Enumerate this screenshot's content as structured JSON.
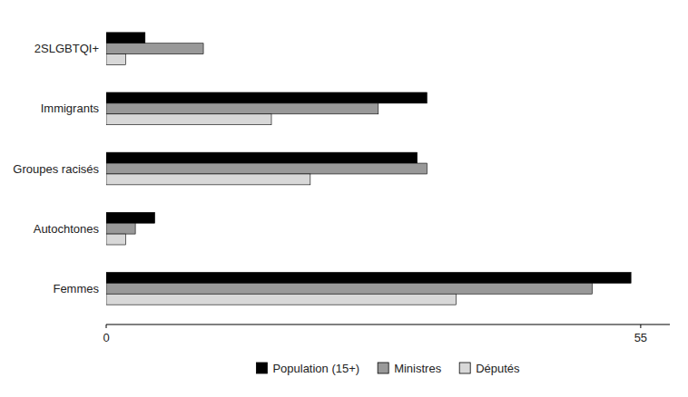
{
  "chart_data": {
    "type": "bar",
    "orientation": "horizontal",
    "categories": [
      "Femmes",
      "Autochtones",
      "Groupes racisés",
      "Immigrants",
      "2SLGBTQI+"
    ],
    "series": [
      {
        "name": "Population (15+)",
        "color": "#000000",
        "values": [
          54,
          5,
          32,
          33,
          4
        ]
      },
      {
        "name": "Ministres",
        "color": "#999999",
        "values": [
          50,
          3,
          33,
          28,
          10
        ]
      },
      {
        "name": "Députés",
        "color": "#d8d8d8",
        "values": [
          36,
          2,
          21,
          17,
          2
        ]
      }
    ],
    "xlim": [
      0,
      58
    ],
    "xticks": [
      0,
      55
    ],
    "grid": false,
    "legend": "bottom"
  }
}
